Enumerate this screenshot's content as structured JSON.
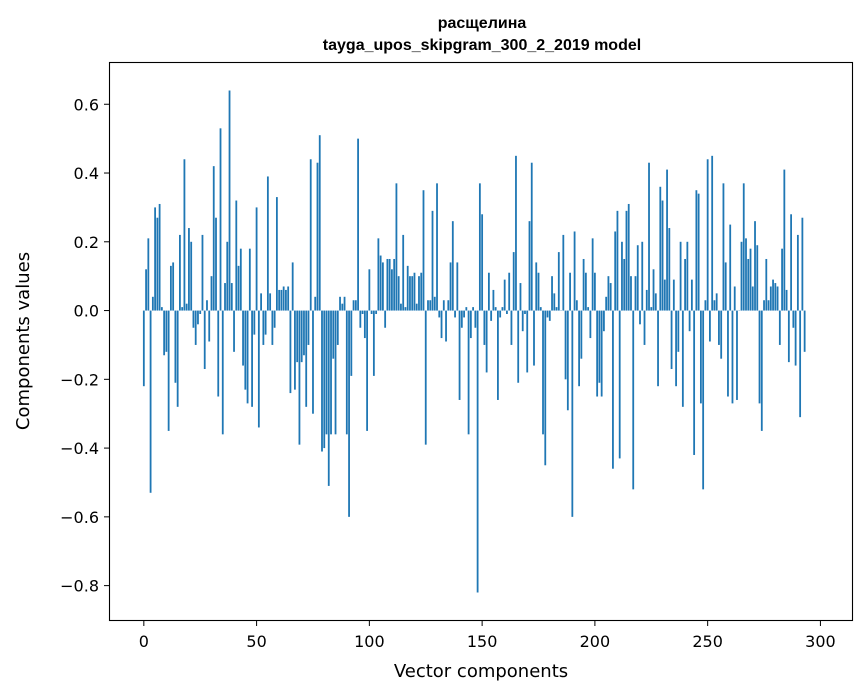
{
  "chart_data": {
    "type": "bar",
    "title": "расщелина",
    "subtitle": "tayga_upos_skipgram_300_2_2019 model",
    "xlabel": "Vector components",
    "ylabel": "Components values",
    "xlim": [
      -15,
      314
    ],
    "ylim": [
      -0.9,
      0.72
    ],
    "xticks": [
      0,
      50,
      100,
      150,
      200,
      250,
      300
    ],
    "xtick_labels": [
      "0",
      "50",
      "100",
      "150",
      "200",
      "250",
      "300"
    ],
    "yticks": [
      -0.8,
      -0.6,
      -0.4,
      -0.2,
      0.0,
      0.2,
      0.4,
      0.6
    ],
    "ytick_labels": [
      "−0.8",
      "−0.6",
      "−0.4",
      "−0.2",
      "0.0",
      "0.2",
      "0.4",
      "0.6"
    ],
    "bar_color": "#1f77b4",
    "grid": false,
    "values": [
      -0.22,
      0.12,
      0.21,
      -0.53,
      0.04,
      0.3,
      0.27,
      0.31,
      0.01,
      -0.13,
      -0.12,
      -0.35,
      0.13,
      0.14,
      -0.21,
      -0.28,
      0.22,
      0.01,
      0.44,
      0.02,
      0.24,
      0.2,
      -0.05,
      -0.1,
      -0.04,
      -0.01,
      0.22,
      -0.17,
      0.03,
      -0.09,
      0.1,
      0.42,
      0.27,
      -0.25,
      0.53,
      -0.36,
      0.08,
      0.2,
      0.64,
      0.08,
      -0.12,
      0.32,
      0.13,
      0.18,
      -0.16,
      -0.23,
      -0.27,
      0.18,
      -0.28,
      -0.07,
      0.3,
      -0.34,
      0.05,
      -0.1,
      -0.07,
      0.39,
      0.05,
      -0.1,
      -0.05,
      0.33,
      0.06,
      0.06,
      0.07,
      0.06,
      0.07,
      -0.24,
      0.14,
      -0.23,
      -0.15,
      -0.39,
      -0.15,
      -0.13,
      -0.28,
      -0.1,
      0.44,
      -0.3,
      0.04,
      0.43,
      0.51,
      -0.41,
      -0.4,
      -0.36,
      -0.51,
      -0.36,
      -0.14,
      -0.36,
      -0.1,
      0.04,
      0.02,
      0.04,
      -0.36,
      -0.6,
      -0.19,
      0.03,
      0.03,
      0.5,
      -0.05,
      -0.01,
      -0.08,
      -0.35,
      0.12,
      -0.01,
      -0.19,
      -0.01,
      0.21,
      0.16,
      0.14,
      -0.05,
      0.15,
      0.15,
      0.12,
      0.15,
      0.37,
      0.1,
      0.02,
      0.22,
      0.01,
      0.13,
      0.1,
      0.1,
      0.11,
      0.02,
      0.1,
      0.11,
      0.35,
      -0.39,
      0.03,
      0.03,
      0.29,
      0.04,
      0.37,
      -0.02,
      -0.08,
      0.03,
      -0.09,
      0.03,
      0.14,
      0.26,
      -0.02,
      0.14,
      -0.26,
      -0.05,
      -0.02,
      0.01,
      -0.36,
      -0.08,
      0.01,
      -0.05,
      -0.82,
      0.37,
      0.28,
      -0.1,
      -0.18,
      0.11,
      -0.03,
      0.06,
      0.01,
      -0.26,
      -0.02,
      0.01,
      0.09,
      -0.01,
      0.11,
      -0.1,
      0.17,
      0.45,
      -0.21,
      0.08,
      -0.06,
      -0.01,
      -0.18,
      0.26,
      0.43,
      -0.16,
      0.14,
      0.11,
      0.01,
      -0.36,
      -0.45,
      -0.02,
      -0.03,
      0.1,
      0.05,
      0.01,
      0.17,
      0.0,
      0.22,
      -0.2,
      -0.29,
      0.11,
      -0.6,
      0.23,
      0.03,
      -0.22,
      -0.14,
      0.15,
      0.11,
      0.01,
      -0.08,
      0.21,
      0.11,
      -0.25,
      -0.21,
      -0.25,
      -0.06,
      0.04,
      0.1,
      0.08,
      -0.46,
      0.23,
      0.29,
      -0.43,
      0.2,
      0.15,
      0.29,
      0.31,
      0.1,
      -0.52,
      0.1,
      0.19,
      -0.04,
      0.2,
      -0.1,
      0.06,
      0.43,
      0.01,
      0.12,
      0.05,
      -0.22,
      0.36,
      0.32,
      0.09,
      0.41,
      0.24,
      -0.17,
      0.09,
      -0.22,
      -0.12,
      0.2,
      -0.28,
      0.15,
      0.2,
      -0.06,
      0.09,
      -0.42,
      0.35,
      0.34,
      -0.27,
      -0.52,
      0.03,
      0.44,
      -0.09,
      0.45,
      0.03,
      0.05,
      -0.1,
      -0.14,
      0.37,
      0.14,
      -0.25,
      0.25,
      -0.27,
      0.07,
      -0.26,
      0.0,
      0.2,
      0.37,
      0.21,
      0.15,
      0.18,
      0.07,
      0.26,
      0.19,
      -0.27,
      -0.35,
      0.03,
      0.15,
      0.03,
      0.07,
      0.09,
      0.08,
      0.07,
      -0.1,
      0.18,
      0.41,
      0.06,
      -0.15,
      0.28,
      -0.05,
      -0.16,
      0.22,
      -0.31,
      0.27,
      -0.12
    ]
  }
}
